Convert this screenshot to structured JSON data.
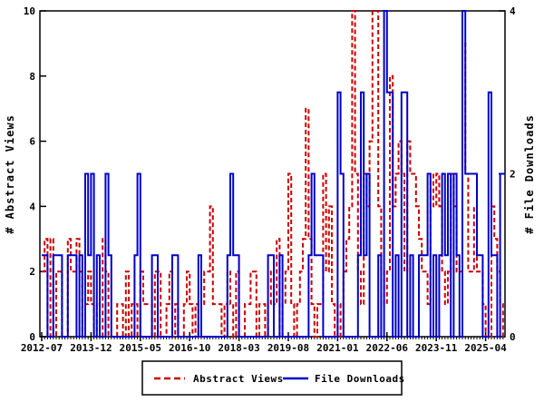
{
  "chart_data": {
    "type": "line",
    "title": "",
    "x_start": "2012-07",
    "x_interval": "month",
    "x_tick_labels": [
      "2012-07",
      "2013-12",
      "2015-05",
      "2016-10",
      "2018-03",
      "2019-08",
      "2021-01",
      "2022-06",
      "2023-11",
      "2025-04"
    ],
    "x_tick_interval_months": 17,
    "grid": false,
    "legend_position": "bottom-center",
    "y_left": {
      "label": "# Abstract Views",
      "min": 0,
      "max": 10,
      "ticks": [
        0,
        2,
        4,
        6,
        8,
        10
      ]
    },
    "y_right": {
      "label": "# File Downloads",
      "min": 0,
      "max": 4,
      "ticks": [
        0,
        2,
        4
      ]
    },
    "series": [
      {
        "name": "Abstract Views",
        "axis": "left",
        "color": "#cc0000",
        "style": "dashed",
        "values": [
          2,
          3,
          0,
          3,
          0,
          2,
          2,
          0,
          0,
          3,
          2,
          2,
          3,
          2,
          0,
          1,
          2,
          1,
          0,
          1,
          0,
          3,
          2,
          0,
          0,
          0,
          1,
          1,
          0,
          2,
          0,
          1,
          1,
          0,
          2,
          1,
          1,
          1,
          0,
          2,
          2,
          0,
          0,
          1,
          2,
          0,
          1,
          0,
          0,
          1,
          2,
          1,
          0,
          1,
          0,
          1,
          2,
          2,
          4,
          1,
          1,
          1,
          0,
          1,
          2,
          1,
          0,
          2,
          0,
          0,
          1,
          1,
          2,
          2,
          0,
          1,
          1,
          0,
          1,
          2,
          1,
          3,
          0,
          1,
          2,
          5,
          1,
          0,
          1,
          2,
          3,
          7,
          3,
          1,
          0,
          1,
          1,
          5,
          2,
          4,
          1,
          0,
          1,
          0,
          2,
          3,
          4,
          10,
          5,
          2,
          1,
          5,
          4,
          6,
          10,
          10,
          4,
          2,
          1,
          2,
          8,
          4,
          5,
          6,
          5,
          2,
          6,
          5,
          5,
          4,
          3,
          2,
          2,
          1,
          5,
          4,
          5,
          4,
          2,
          1,
          2,
          5,
          4,
          2,
          2,
          9,
          5,
          2,
          2,
          4,
          2,
          2,
          1,
          0,
          0,
          4,
          3,
          2,
          1,
          0
        ]
      },
      {
        "name": "File Downloads",
        "axis": "right",
        "color": "#0000cc",
        "style": "solid",
        "values": [
          1,
          1,
          0,
          0,
          1,
          1,
          1,
          0,
          0,
          1,
          1,
          1,
          0,
          1,
          0,
          2,
          1,
          2,
          0,
          1,
          0,
          0,
          2,
          1,
          0,
          0,
          0,
          0,
          0,
          0,
          0,
          0,
          1,
          2,
          0,
          0,
          0,
          0,
          1,
          1,
          0,
          0,
          0,
          0,
          0,
          1,
          1,
          0,
          0,
          0,
          0,
          0,
          0,
          0,
          1,
          0,
          0,
          0,
          0,
          0,
          0,
          0,
          0,
          0,
          1,
          2,
          1,
          1,
          0,
          0,
          0,
          0,
          0,
          0,
          0,
          0,
          0,
          0,
          1,
          1,
          0,
          0,
          1,
          0,
          0,
          0,
          0,
          0,
          0,
          0,
          0,
          0,
          1,
          2,
          1,
          1,
          1,
          0,
          0,
          0,
          0,
          0,
          3,
          2,
          0,
          0,
          0,
          0,
          0,
          1,
          3,
          1,
          2,
          0,
          0,
          0,
          1,
          0,
          4,
          3,
          3,
          0,
          1,
          0,
          3,
          3,
          0,
          1,
          0,
          0,
          1,
          1,
          1,
          2,
          0,
          1,
          0,
          1,
          2,
          1,
          2,
          0,
          2,
          1,
          0,
          4,
          2,
          2,
          2,
          2,
          1,
          1,
          0,
          0,
          3,
          1,
          1,
          0,
          2,
          2
        ]
      }
    ]
  }
}
